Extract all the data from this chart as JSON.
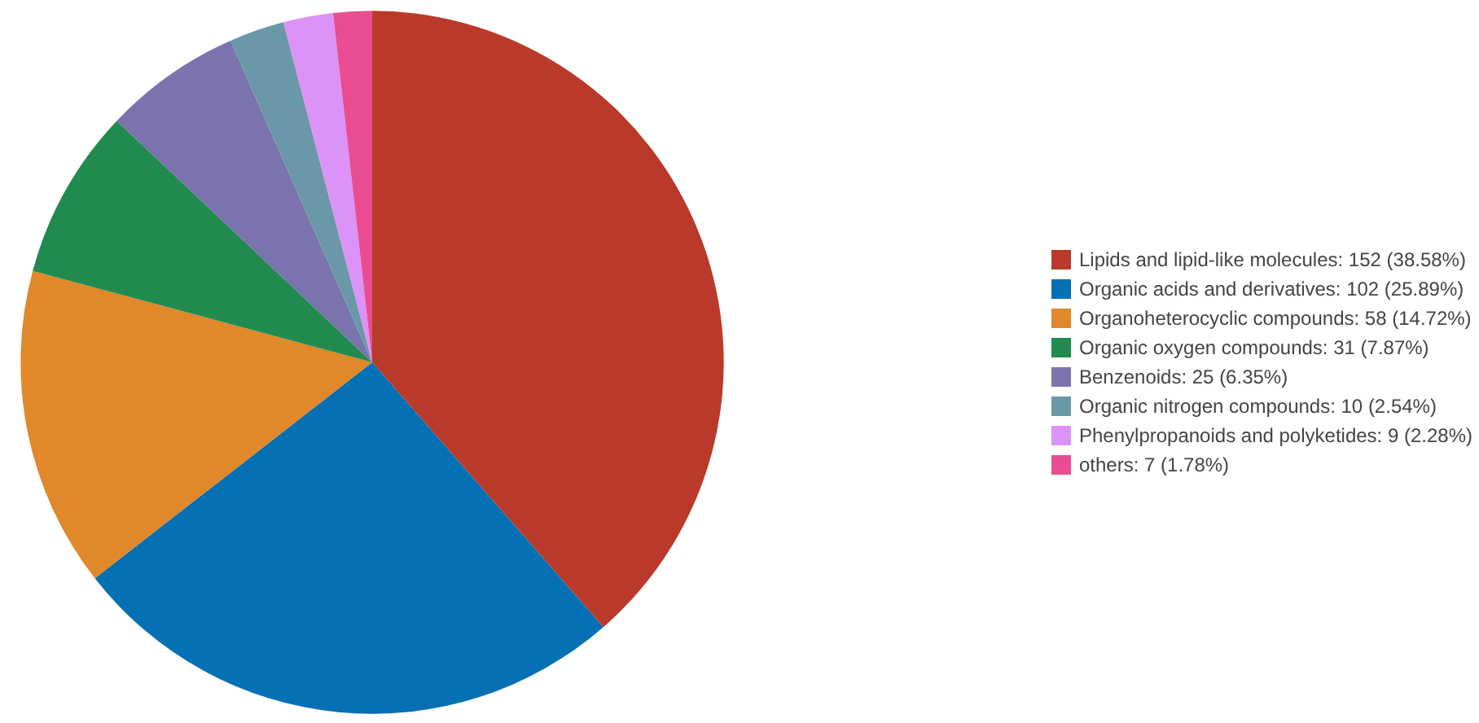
{
  "chart_data": {
    "type": "pie",
    "categories": [
      "Lipids and lipid-like molecules: 152 (38.58%)",
      "Organic acids and derivatives: 102 (25.89%)",
      "Organoheterocyclic compounds: 58 (14.72%)",
      "Organic oxygen compounds: 31 (7.87%)",
      "Benzenoids: 25 (6.35%)",
      "Organic nitrogen compounds: 10 (2.54%)",
      "Phenylpropanoids and polyketides: 9 (2.28%)",
      "others: 7 (1.78%)"
    ],
    "values": [
      152,
      102,
      58,
      31,
      25,
      10,
      9,
      7
    ],
    "colors": [
      "#b93a2a",
      "#0570b3",
      "#e0882a",
      "#208a4f",
      "#7a73ae",
      "#6b98a8",
      "#dc93f7",
      "#ea4c92"
    ],
    "legend": "right"
  }
}
